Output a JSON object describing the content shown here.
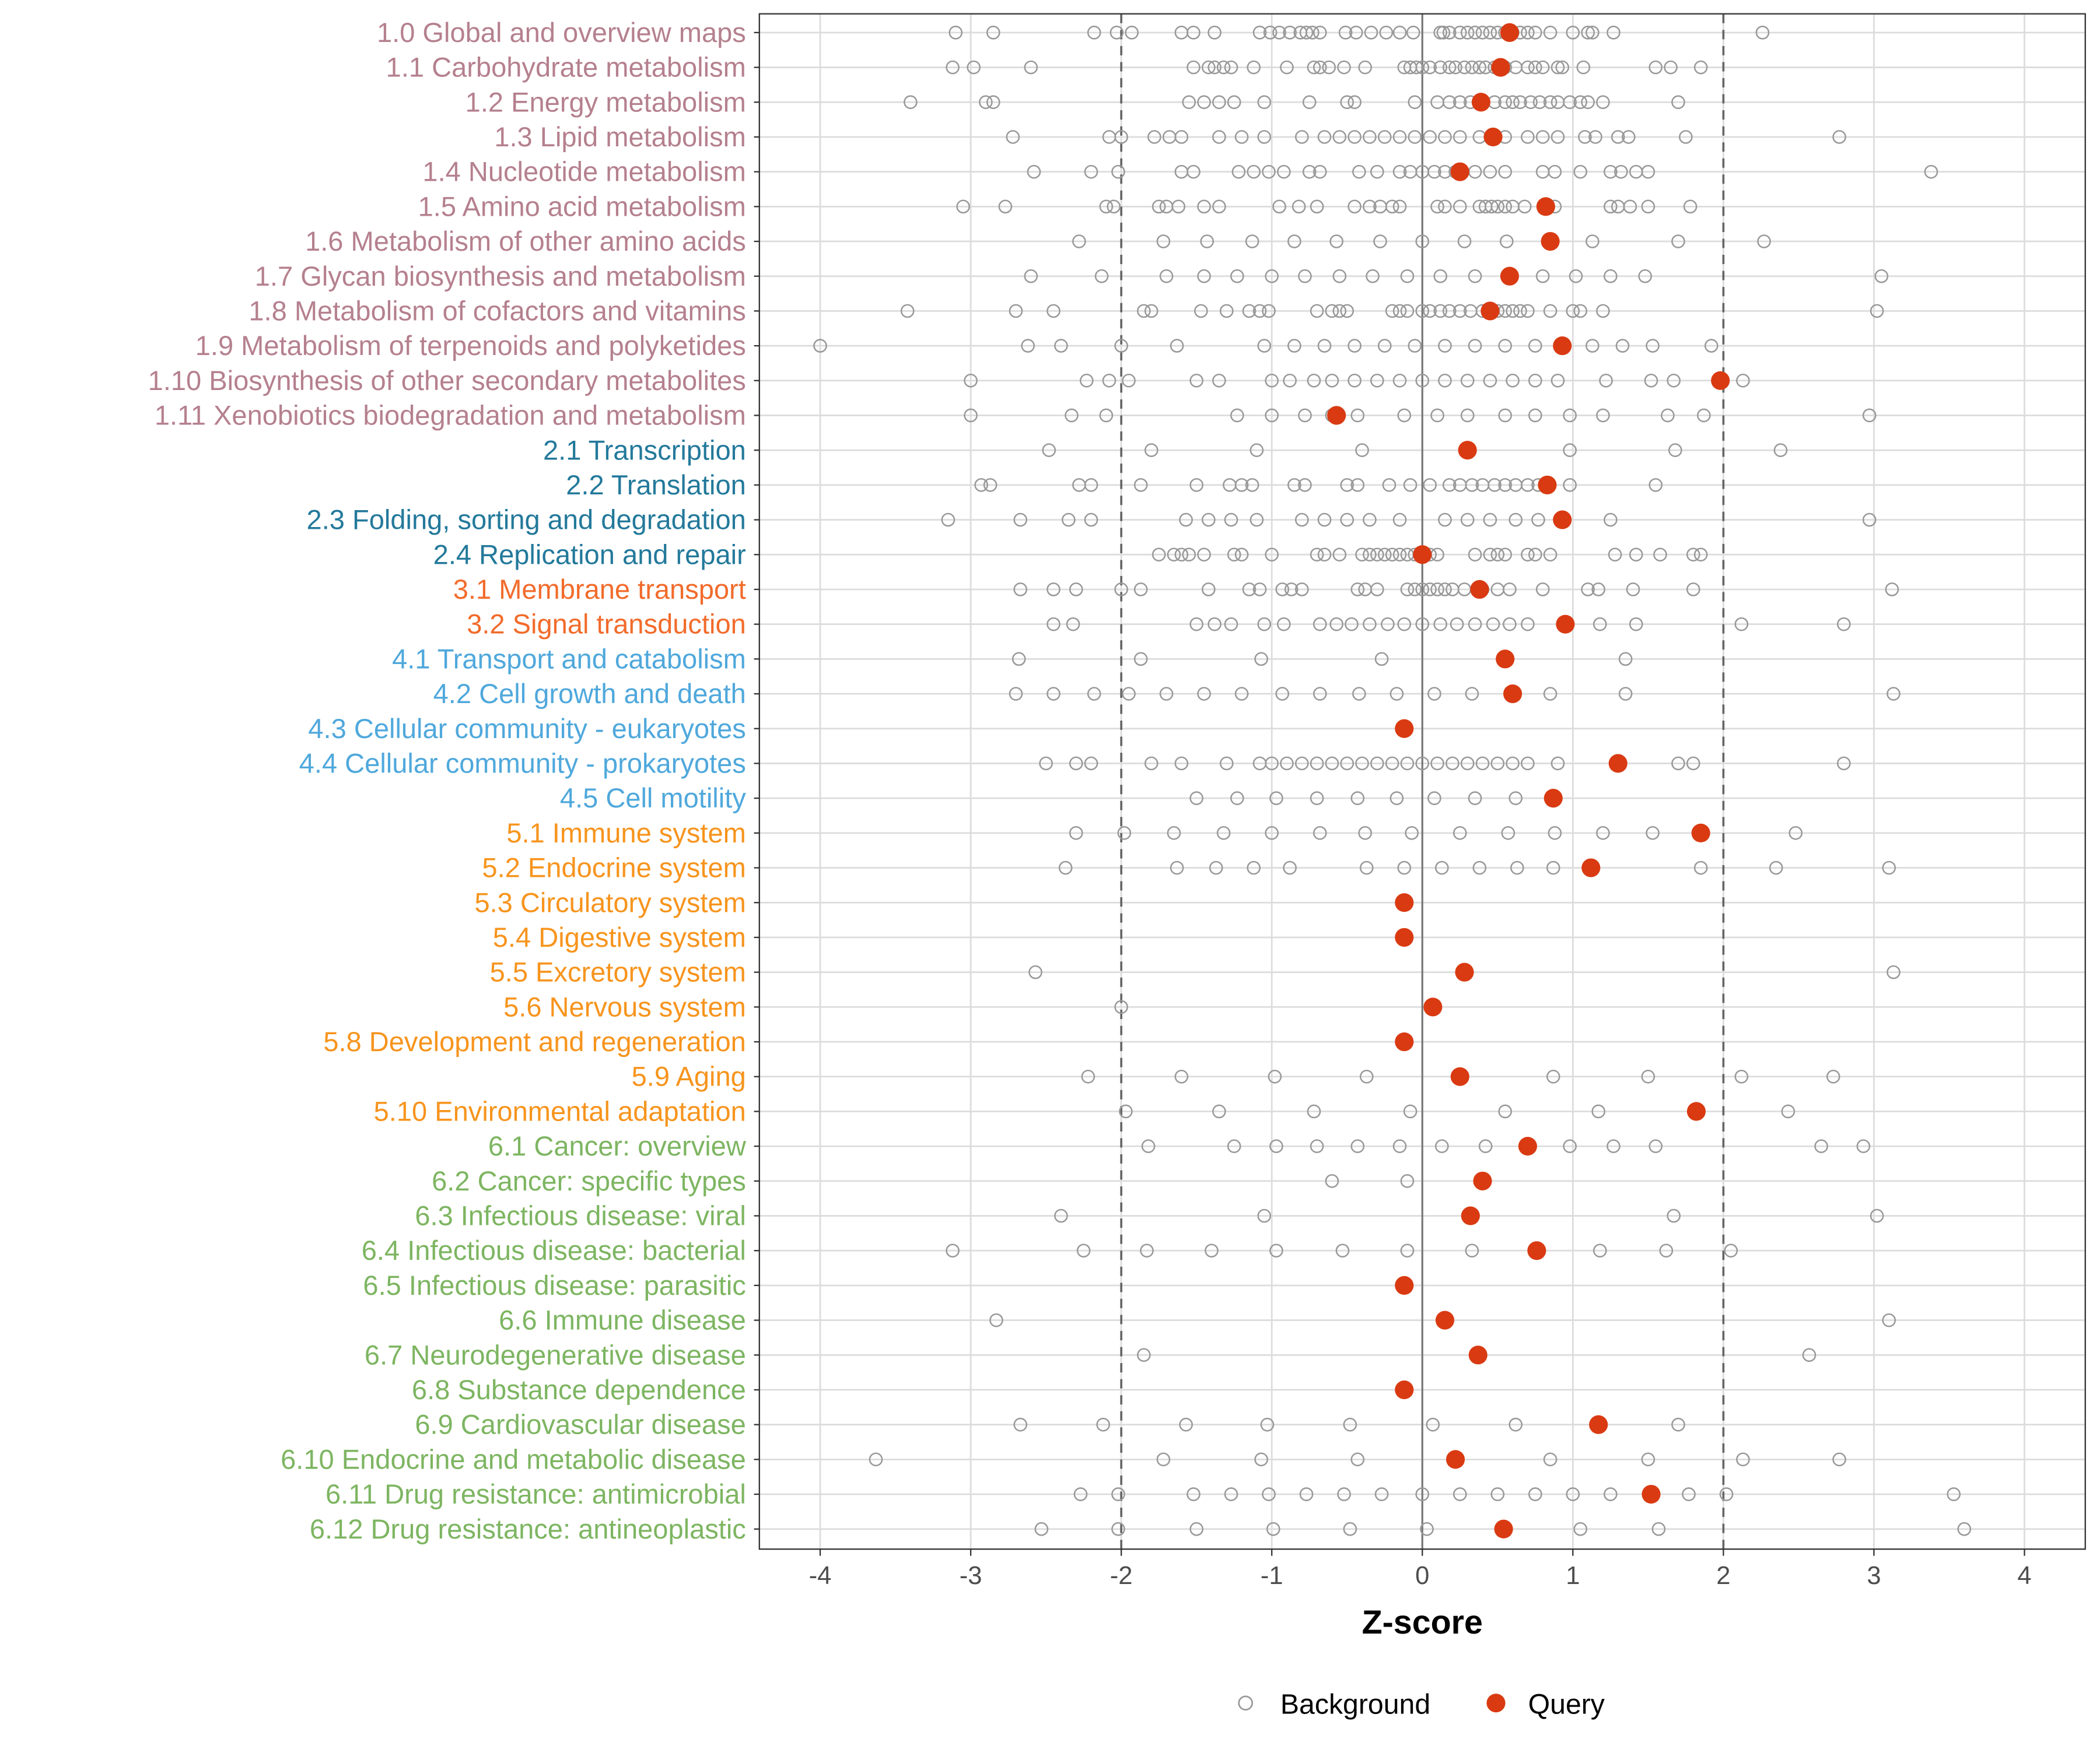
{
  "chart_data": {
    "type": "scatter",
    "title": "",
    "xlabel": "Z-score",
    "ylabel": "",
    "xlim": [
      -4.5,
      4.3
    ],
    "xticks": [
      "-4",
      "-3",
      "-2",
      "-1",
      "0",
      "1",
      "2",
      "3",
      "4"
    ],
    "xtick_values": [
      -4,
      -3,
      -2,
      -1,
      0,
      1,
      2,
      3,
      4
    ],
    "reference_lines": {
      "dashed": [
        -2,
        2
      ],
      "solid": [
        0
      ]
    },
    "grid": true,
    "legend": {
      "placement": "bottom",
      "entries": [
        "Background",
        "Query"
      ]
    },
    "colors": {
      "background_point": "#999999",
      "query_point": "#D93A12",
      "group_1": "#B5808E",
      "group_2": "#23799B",
      "group_3": "#F26B2B",
      "group_4": "#4FA8DC",
      "group_5": "#F7941D",
      "group_6": "#7DB561"
    },
    "rows": [
      {
        "label": "1.0 Global and overview maps",
        "group": 1,
        "query": 0.58,
        "background": [
          -3.1,
          -2.85,
          -2.18,
          -2.03,
          -1.93,
          -1.6,
          -1.52,
          -1.38,
          -1.08,
          -1.01,
          -0.95,
          -0.88,
          -0.81,
          -0.77,
          -0.73,
          -0.68,
          -0.51,
          -0.44,
          -0.34,
          -0.24,
          -0.15,
          -0.06,
          0.12,
          0.14,
          0.18,
          0.25,
          0.3,
          0.35,
          0.4,
          0.45,
          0.5,
          0.55,
          0.6,
          0.65,
          0.7,
          0.75,
          0.85,
          1.0,
          1.1,
          1.13,
          1.27,
          2.26
        ]
      },
      {
        "label": "1.1 Carbohydrate metabolism",
        "group": 1,
        "query": 0.52,
        "background": [
          -3.12,
          -2.98,
          -2.6,
          -1.52,
          -1.42,
          -1.38,
          -1.32,
          -1.27,
          -1.12,
          -0.9,
          -0.72,
          -0.68,
          -0.62,
          -0.52,
          -0.38,
          -0.12,
          -0.08,
          -0.04,
          0,
          0.05,
          0.12,
          0.18,
          0.22,
          0.28,
          0.33,
          0.38,
          0.42,
          0.48,
          0.55,
          0.62,
          0.7,
          0.75,
          0.8,
          0.9,
          0.93,
          1.07,
          1.55,
          1.65,
          1.85
        ]
      },
      {
        "label": "1.2 Energy metabolism",
        "group": 1,
        "query": 0.39,
        "background": [
          -3.4,
          -2.9,
          -2.85,
          -1.55,
          -1.45,
          -1.35,
          -1.25,
          -1.05,
          -0.75,
          -0.5,
          -0.45,
          -0.05,
          0.1,
          0.18,
          0.25,
          0.32,
          0.4,
          0.48,
          0.55,
          0.6,
          0.65,
          0.72,
          0.78,
          0.85,
          0.9,
          0.98,
          1.05,
          1.1,
          1.2,
          1.7
        ]
      },
      {
        "label": "1.3 Lipid metabolism",
        "group": 1,
        "query": 0.47,
        "background": [
          -2.72,
          -2.08,
          -2.0,
          -1.78,
          -1.68,
          -1.6,
          -1.35,
          -1.2,
          -1.05,
          -0.8,
          -0.65,
          -0.55,
          -0.45,
          -0.35,
          -0.25,
          -0.15,
          -0.05,
          0.05,
          0.15,
          0.25,
          0.38,
          0.55,
          0.7,
          0.8,
          0.9,
          1.08,
          1.15,
          1.3,
          1.37,
          1.75,
          2.77
        ]
      },
      {
        "label": "1.4 Nucleotide metabolism",
        "group": 1,
        "query": 0.25,
        "background": [
          -2.58,
          -2.2,
          -2.02,
          -1.6,
          -1.52,
          -1.22,
          -1.12,
          -1.02,
          -0.92,
          -0.75,
          -0.68,
          -0.42,
          -0.3,
          -0.15,
          -0.08,
          0,
          0.08,
          0.15,
          0.22,
          0.35,
          0.45,
          0.55,
          0.8,
          0.88,
          1.05,
          1.25,
          1.32,
          1.42,
          1.5,
          3.38
        ]
      },
      {
        "label": "1.5 Amino acid metabolism",
        "group": 1,
        "query": 0.82,
        "background": [
          -3.05,
          -2.77,
          -2.1,
          -2.05,
          -1.75,
          -1.7,
          -1.62,
          -1.45,
          -1.35,
          -0.95,
          -0.82,
          -0.7,
          -0.45,
          -0.35,
          -0.28,
          -0.2,
          -0.15,
          0.1,
          0.15,
          0.25,
          0.38,
          0.42,
          0.46,
          0.5,
          0.55,
          0.6,
          0.68,
          0.88,
          1.25,
          1.3,
          1.38,
          1.5,
          1.78
        ]
      },
      {
        "label": "1.6 Metabolism of other amino acids",
        "group": 1,
        "query": 0.85,
        "background": [
          -2.28,
          -1.72,
          -1.43,
          -1.13,
          -0.85,
          -0.57,
          -0.28,
          0,
          0.28,
          0.56,
          0.85,
          1.13,
          1.7,
          2.27
        ]
      },
      {
        "label": "1.7 Glycan biosynthesis and metabolism",
        "group": 1,
        "query": 0.58,
        "background": [
          -2.6,
          -2.13,
          -1.7,
          -1.45,
          -1.23,
          -1.0,
          -0.78,
          -0.55,
          -0.33,
          -0.1,
          0.12,
          0.35,
          0.58,
          0.8,
          1.02,
          1.25,
          1.48,
          3.05
        ]
      },
      {
        "label": "1.8 Metabolism of cofactors and vitamins",
        "group": 1,
        "query": 0.45,
        "background": [
          -3.42,
          -2.7,
          -2.45,
          -1.85,
          -1.8,
          -1.47,
          -1.3,
          -1.15,
          -1.08,
          -1.02,
          -0.7,
          -0.6,
          -0.55,
          -0.5,
          -0.2,
          -0.15,
          -0.1,
          0,
          0.05,
          0.12,
          0.18,
          0.25,
          0.32,
          0.4,
          0.5,
          0.55,
          0.6,
          0.65,
          0.7,
          0.85,
          1.0,
          1.05,
          1.2,
          3.02
        ]
      },
      {
        "label": "1.9 Metabolism of terpenoids and polyketides",
        "group": 1,
        "query": 0.93,
        "background": [
          -4.0,
          -2.62,
          -2.4,
          -2.0,
          -1.63,
          -1.05,
          -0.85,
          -0.65,
          -0.45,
          -0.25,
          -0.05,
          0.15,
          0.35,
          0.55,
          0.75,
          1.13,
          1.33,
          1.53,
          1.92
        ]
      },
      {
        "label": "1.10 Biosynthesis of other secondary metabolites",
        "group": 1,
        "query": 1.98,
        "background": [
          -3.0,
          -2.23,
          -2.08,
          -1.95,
          -1.5,
          -1.35,
          -1.0,
          -0.88,
          -0.72,
          -0.6,
          -0.45,
          -0.3,
          -0.15,
          0,
          0.15,
          0.3,
          0.45,
          0.6,
          0.75,
          0.9,
          1.22,
          1.52,
          1.67,
          2.13
        ]
      },
      {
        "label": "1.11 Xenobiotics biodegradation and metabolism",
        "group": 1,
        "query": -0.57,
        "background": [
          -3.0,
          -2.33,
          -2.1,
          -1.23,
          -1.0,
          -0.78,
          -0.6,
          -0.43,
          -0.12,
          0.1,
          0.3,
          0.55,
          0.75,
          0.98,
          1.2,
          1.63,
          1.87,
          2.97
        ]
      },
      {
        "label": "2.1 Transcription",
        "group": 2,
        "query": 0.3,
        "background": [
          -2.48,
          -1.8,
          -1.1,
          -0.4,
          0.3,
          0.98,
          1.68,
          2.38
        ]
      },
      {
        "label": "2.2 Translation",
        "group": 2,
        "query": 0.83,
        "background": [
          -2.93,
          -2.87,
          -2.28,
          -2.2,
          -1.87,
          -1.5,
          -1.28,
          -1.2,
          -1.13,
          -0.85,
          -0.78,
          -0.5,
          -0.43,
          -0.22,
          -0.08,
          0.05,
          0.18,
          0.25,
          0.33,
          0.4,
          0.48,
          0.55,
          0.62,
          0.7,
          0.77,
          0.98,
          1.55
        ]
      },
      {
        "label": "2.3 Folding, sorting and degradation",
        "group": 2,
        "query": 0.93,
        "background": [
          -3.15,
          -2.67,
          -2.35,
          -2.2,
          -1.57,
          -1.42,
          -1.27,
          -1.1,
          -0.8,
          -0.65,
          -0.5,
          -0.35,
          -0.15,
          0.15,
          0.3,
          0.45,
          0.62,
          0.77,
          1.25,
          2.97
        ]
      },
      {
        "label": "2.4 Replication and repair",
        "group": 2,
        "query": 0.0,
        "background": [
          -1.75,
          -1.65,
          -1.6,
          -1.55,
          -1.45,
          -1.25,
          -1.2,
          -1.0,
          -0.7,
          -0.65,
          -0.55,
          -0.4,
          -0.35,
          -0.3,
          -0.25,
          -0.2,
          -0.15,
          -0.1,
          -0.05,
          0,
          0.05,
          0.1,
          0.35,
          0.45,
          0.5,
          0.55,
          0.7,
          0.75,
          0.85,
          1.28,
          1.42,
          1.58,
          1.8,
          1.85
        ]
      },
      {
        "label": "3.1 Membrane transport",
        "group": 3,
        "query": 0.38,
        "background": [
          -2.67,
          -2.45,
          -2.3,
          -2.0,
          -1.87,
          -1.42,
          -1.15,
          -1.08,
          -0.93,
          -0.87,
          -0.8,
          -0.43,
          -0.38,
          -0.3,
          -0.1,
          -0.05,
          0,
          0.05,
          0.1,
          0.15,
          0.2,
          0.28,
          0.4,
          0.5,
          0.58,
          0.8,
          1.1,
          1.17,
          1.4,
          1.8,
          3.12
        ]
      },
      {
        "label": "3.2 Signal transduction",
        "group": 3,
        "query": 0.95,
        "background": [
          -2.45,
          -2.32,
          -1.5,
          -1.38,
          -1.27,
          -1.05,
          -0.92,
          -0.68,
          -0.57,
          -0.47,
          -0.35,
          -0.23,
          -0.12,
          0,
          0.12,
          0.23,
          0.35,
          0.47,
          0.58,
          0.7,
          0.95,
          1.18,
          1.42,
          2.12,
          2.8
        ]
      },
      {
        "label": "4.1 Transport and catabolism",
        "group": 4,
        "query": 0.55,
        "background": [
          -2.68,
          -1.87,
          -1.07,
          -0.27,
          1.35
        ]
      },
      {
        "label": "4.2 Cell growth and death",
        "group": 4,
        "query": 0.6,
        "background": [
          -2.7,
          -2.45,
          -2.18,
          -1.95,
          -1.7,
          -1.45,
          -1.2,
          -0.93,
          -0.68,
          -0.42,
          -0.17,
          0.08,
          0.33,
          0.85,
          1.35,
          3.13
        ]
      },
      {
        "label": "4.3 Cellular community - eukaryotes",
        "group": 4,
        "query": -0.12,
        "background": []
      },
      {
        "label": "4.4 Cellular community - prokaryotes",
        "group": 4,
        "query": 1.3,
        "background": [
          -2.5,
          -2.3,
          -2.2,
          -1.8,
          -1.6,
          -1.3,
          -1.08,
          -1.0,
          -0.9,
          -0.8,
          -0.7,
          -0.6,
          -0.5,
          -0.4,
          -0.3,
          -0.2,
          -0.1,
          0,
          0.1,
          0.2,
          0.3,
          0.4,
          0.5,
          0.6,
          0.7,
          0.9,
          1.7,
          1.8,
          2.8
        ]
      },
      {
        "label": "4.5 Cell motility",
        "group": 4,
        "query": 0.87,
        "background": [
          -1.5,
          -1.23,
          -0.97,
          -0.7,
          -0.43,
          -0.17,
          0.08,
          0.35,
          0.62
        ]
      },
      {
        "label": "5.1 Immune system",
        "group": 5,
        "query": 1.85,
        "background": [
          -2.3,
          -1.98,
          -1.65,
          -1.32,
          -1.0,
          -0.68,
          -0.38,
          -0.07,
          0.25,
          0.57,
          0.88,
          1.2,
          1.53,
          2.48
        ]
      },
      {
        "label": "5.2 Endocrine system",
        "group": 5,
        "query": 1.12,
        "background": [
          -2.37,
          -1.63,
          -1.37,
          -1.12,
          -0.88,
          -0.37,
          -0.12,
          0.13,
          0.38,
          0.63,
          0.87,
          1.85,
          2.35,
          3.1
        ]
      },
      {
        "label": "5.3 Circulatory system",
        "group": 5,
        "query": -0.12,
        "background": []
      },
      {
        "label": "5.4 Digestive system",
        "group": 5,
        "query": -0.12,
        "background": []
      },
      {
        "label": "5.5 Excretory system",
        "group": 5,
        "query": 0.28,
        "background": [
          -2.57,
          3.13
        ]
      },
      {
        "label": "5.6 Nervous system",
        "group": 5,
        "query": 0.07,
        "background": [
          -2.0
        ]
      },
      {
        "label": "5.8 Development and regeneration",
        "group": 5,
        "query": -0.12,
        "background": []
      },
      {
        "label": "5.9 Aging",
        "group": 5,
        "query": 0.25,
        "background": [
          -2.22,
          -1.6,
          -0.98,
          -0.37,
          0.87,
          1.5,
          2.12,
          2.73
        ]
      },
      {
        "label": "5.10 Environmental adaptation",
        "group": 5,
        "query": 1.82,
        "background": [
          -1.97,
          -1.35,
          -0.72,
          -0.08,
          0.55,
          1.17,
          2.43
        ]
      },
      {
        "label": "6.1 Cancer: overview",
        "group": 6,
        "query": 0.7,
        "background": [
          -1.82,
          -1.25,
          -0.97,
          -0.7,
          -0.43,
          -0.15,
          0.13,
          0.42,
          0.98,
          1.27,
          1.55,
          2.65,
          2.93
        ]
      },
      {
        "label": "6.2 Cancer: specific types",
        "group": 6,
        "query": 0.4,
        "background": [
          -0.6,
          -0.1
        ]
      },
      {
        "label": "6.3 Infectious disease: viral",
        "group": 6,
        "query": 0.32,
        "background": [
          -2.4,
          -1.05,
          1.67,
          3.02
        ]
      },
      {
        "label": "6.4 Infectious disease: bacterial",
        "group": 6,
        "query": 0.76,
        "background": [
          -3.12,
          -2.25,
          -1.83,
          -1.4,
          -0.97,
          -0.53,
          -0.1,
          0.33,
          1.18,
          1.62,
          2.05
        ]
      },
      {
        "label": "6.5 Infectious disease: parasitic",
        "group": 6,
        "query": -0.12,
        "background": []
      },
      {
        "label": "6.6 Immune disease",
        "group": 6,
        "query": 0.15,
        "background": [
          -2.83,
          3.1
        ]
      },
      {
        "label": "6.7 Neurodegenerative disease",
        "group": 6,
        "query": 0.37,
        "background": [
          -1.85,
          2.57
        ]
      },
      {
        "label": "6.8 Substance dependence",
        "group": 6,
        "query": -0.12,
        "background": []
      },
      {
        "label": "6.9 Cardiovascular disease",
        "group": 6,
        "query": 1.17,
        "background": [
          -2.67,
          -2.12,
          -1.57,
          -1.03,
          -0.48,
          0.07,
          0.62,
          1.7
        ]
      },
      {
        "label": "6.10 Endocrine and metabolic disease",
        "group": 6,
        "query": 0.22,
        "background": [
          -3.63,
          -1.72,
          -1.07,
          -0.43,
          0.85,
          1.5,
          2.13,
          2.77
        ]
      },
      {
        "label": "6.11 Drug resistance: antimicrobial",
        "group": 6,
        "query": 1.52,
        "background": [
          -2.27,
          -2.02,
          -1.52,
          -1.27,
          -1.02,
          -0.77,
          -0.52,
          -0.27,
          0,
          0.25,
          0.5,
          0.75,
          1.0,
          1.25,
          1.77,
          2.02,
          3.53
        ]
      },
      {
        "label": "6.12 Drug resistance: antineoplastic",
        "group": 6,
        "query": 0.54,
        "background": [
          -2.53,
          -2.02,
          -1.5,
          -0.99,
          -0.48,
          0.03,
          1.05,
          1.57,
          3.6
        ]
      }
    ]
  }
}
